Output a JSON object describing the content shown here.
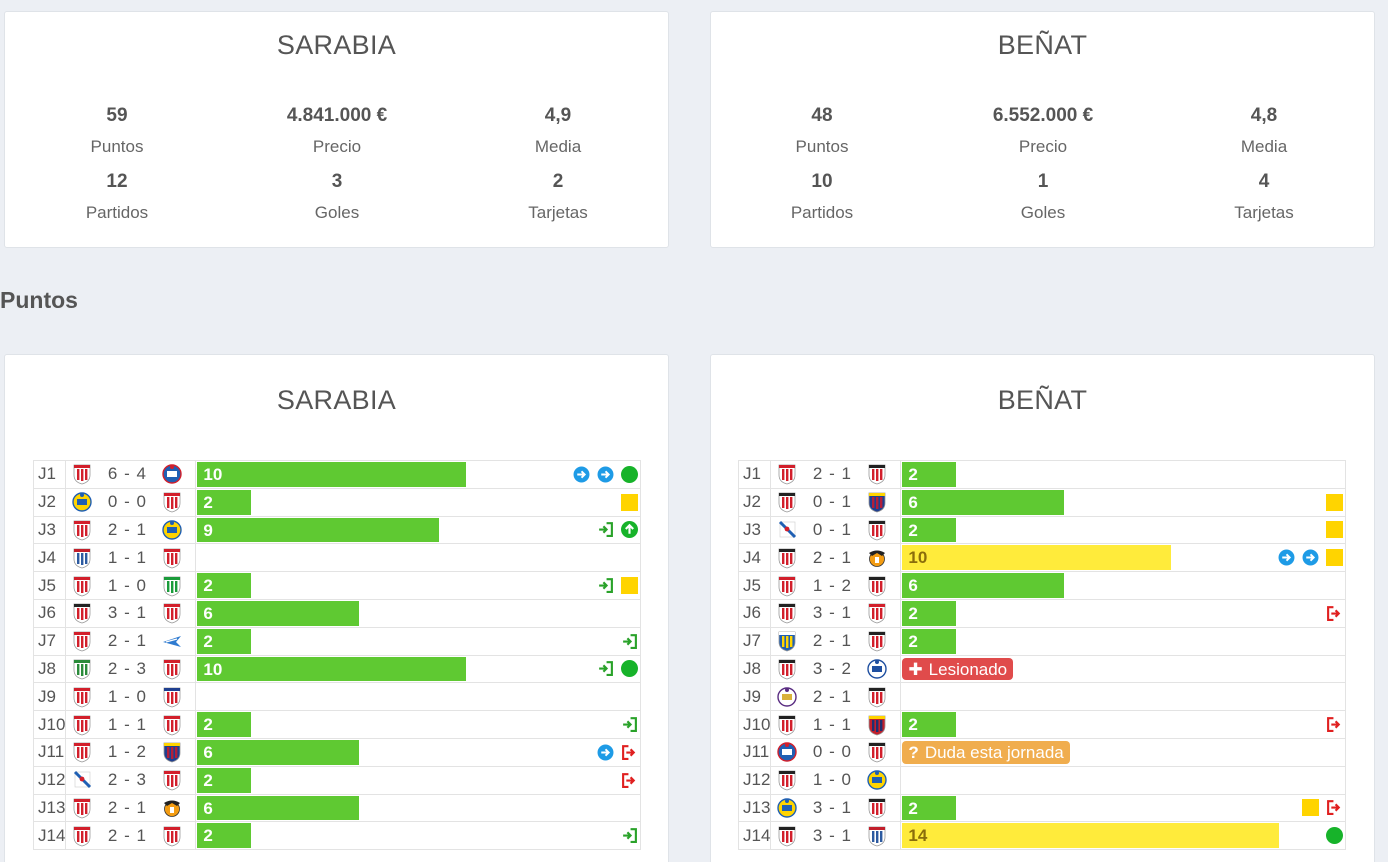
{
  "summary": {
    "left": {
      "name": "SARABIA",
      "stats": [
        {
          "value": "59",
          "label": "Puntos"
        },
        {
          "value": "4.841.000 €",
          "label": "Precio"
        },
        {
          "value": "4,9",
          "label": "Media"
        },
        {
          "value": "12",
          "label": "Partidos"
        },
        {
          "value": "3",
          "label": "Goles"
        },
        {
          "value": "2",
          "label": "Tarjetas"
        }
      ]
    },
    "right": {
      "name": "BEÑAT",
      "stats": [
        {
          "value": "48",
          "label": "Puntos"
        },
        {
          "value": "6.552.000 €",
          "label": "Precio"
        },
        {
          "value": "4,8",
          "label": "Media"
        },
        {
          "value": "10",
          "label": "Partidos"
        },
        {
          "value": "1",
          "label": "Goles"
        },
        {
          "value": "4",
          "label": "Tarjetas"
        }
      ]
    }
  },
  "section_heading": "Puntos",
  "points": {
    "max_points": 14,
    "left": {
      "name": "SARABIA",
      "rows": [
        {
          "j": "J1",
          "home": "sevilla",
          "result": "6 - 4",
          "away": "espanyol",
          "points": "10",
          "bar": "green",
          "icons": [
            "sub-out",
            "sub-out",
            "green-dot"
          ]
        },
        {
          "j": "J2",
          "home": "villarreal",
          "result": "0 - 0",
          "away": "sevilla",
          "points": "2",
          "bar": "green",
          "icons": [
            "yellow-card"
          ]
        },
        {
          "j": "J3",
          "home": "sevilla",
          "result": "2 - 1",
          "away": "las-palmas",
          "points": "9",
          "bar": "green",
          "icons": [
            "sub-in",
            "green-up"
          ]
        },
        {
          "j": "J4",
          "home": "eibar",
          "result": "1 - 1",
          "away": "sevilla",
          "points": "",
          "bar": "",
          "icons": []
        },
        {
          "j": "J5",
          "home": "sevilla",
          "result": "1 - 0",
          "away": "betis",
          "points": "2",
          "bar": "green",
          "icons": [
            "sub-in",
            "yellow-card"
          ]
        },
        {
          "j": "J6",
          "home": "athletic",
          "result": "3 - 1",
          "away": "sevilla",
          "points": "6",
          "bar": "green",
          "icons": []
        },
        {
          "j": "J7",
          "home": "sevilla",
          "result": "2 - 1",
          "away": "alaves",
          "points": "2",
          "bar": "green",
          "icons": [
            "sub-in"
          ]
        },
        {
          "j": "J8",
          "home": "leganes",
          "result": "2 - 3",
          "away": "sevilla",
          "points": "10",
          "bar": "green",
          "icons": [
            "sub-in",
            "green-dot"
          ]
        },
        {
          "j": "J9",
          "home": "sevilla",
          "result": "1 - 0",
          "away": "atletico",
          "points": "",
          "bar": "",
          "icons": []
        },
        {
          "j": "J10",
          "home": "sporting",
          "result": "1 - 1",
          "away": "sevilla",
          "points": "2",
          "bar": "green",
          "icons": [
            "sub-in"
          ]
        },
        {
          "j": "J11",
          "home": "sevilla",
          "result": "1 - 2",
          "away": "barcelona",
          "points": "6",
          "bar": "green",
          "icons": [
            "sub-out",
            "red-out"
          ]
        },
        {
          "j": "J12",
          "home": "deportivo",
          "result": "2 - 3",
          "away": "sevilla",
          "points": "2",
          "bar": "green",
          "icons": [
            "red-out"
          ]
        },
        {
          "j": "J13",
          "home": "sevilla",
          "result": "2 - 1",
          "away": "valencia",
          "points": "6",
          "bar": "green",
          "icons": []
        },
        {
          "j": "J14",
          "home": "granada",
          "result": "2 - 1",
          "away": "sevilla",
          "points": "2",
          "bar": "green",
          "icons": [
            "sub-in"
          ]
        }
      ]
    },
    "right": {
      "name": "BEÑAT",
      "rows": [
        {
          "j": "J1",
          "home": "sporting",
          "result": "2 - 1",
          "away": "athletic",
          "points": "2",
          "bar": "green",
          "icons": []
        },
        {
          "j": "J2",
          "home": "athletic",
          "result": "0 - 1",
          "away": "barcelona",
          "points": "6",
          "bar": "green",
          "icons": [
            "yellow-card"
          ]
        },
        {
          "j": "J3",
          "home": "deportivo",
          "result": "0 - 1",
          "away": "athletic",
          "points": "2",
          "bar": "green",
          "icons": [
            "yellow-card"
          ]
        },
        {
          "j": "J4",
          "home": "athletic",
          "result": "2 - 1",
          "away": "valencia",
          "points": "10",
          "bar": "yellow",
          "icons": [
            "sub-out",
            "sub-out",
            "yellow-card"
          ]
        },
        {
          "j": "J5",
          "home": "granada",
          "result": "1 - 2",
          "away": "athletic",
          "points": "6",
          "bar": "green",
          "icons": []
        },
        {
          "j": "J6",
          "home": "athletic",
          "result": "3 - 1",
          "away": "sevilla",
          "points": "2",
          "bar": "green",
          "icons": [
            "red-out"
          ]
        },
        {
          "j": "J7",
          "home": "malaga",
          "result": "2 - 1",
          "away": "athletic",
          "points": "2",
          "bar": "green",
          "icons": []
        },
        {
          "j": "J8",
          "home": "athletic",
          "result": "3 - 2",
          "away": "real-sociedad",
          "points": "",
          "bar": "",
          "badge": {
            "type": "red",
            "icon": "✚",
            "text": "Lesionado"
          },
          "icons": []
        },
        {
          "j": "J9",
          "home": "real-madrid",
          "result": "2 - 1",
          "away": "athletic",
          "points": "",
          "bar": "",
          "icons": []
        },
        {
          "j": "J10",
          "home": "athletic",
          "result": "1 - 1",
          "away": "osasuna",
          "points": "2",
          "bar": "green",
          "icons": [
            "red-out"
          ]
        },
        {
          "j": "J11",
          "home": "espanyol",
          "result": "0 - 0",
          "away": "athletic",
          "points": "",
          "bar": "",
          "badge": {
            "type": "orange",
            "icon": "?",
            "text": "Duda esta jornada"
          },
          "icons": []
        },
        {
          "j": "J12",
          "home": "athletic",
          "result": "1 - 0",
          "away": "villarreal",
          "points": "",
          "bar": "",
          "icons": []
        },
        {
          "j": "J13",
          "home": "las-palmas",
          "result": "3 - 1",
          "away": "athletic",
          "points": "2",
          "bar": "green",
          "icons": [
            "yellow-card",
            "red-out"
          ]
        },
        {
          "j": "J14",
          "home": "athletic",
          "result": "3 - 1",
          "away": "eibar",
          "points": "14",
          "bar": "yellow",
          "icons": [
            "green-dot"
          ]
        }
      ]
    }
  },
  "colors": {
    "bar_green": "#5fc932",
    "bar_yellow": "#ffeb3b",
    "sub_blue": "#1e9be6",
    "sub_in_green": "#2aa22a",
    "red_out": "#e02020",
    "yellow_card": "#ffd400",
    "status_red": "#e04b4b",
    "status_orange": "#f0ad4e"
  }
}
